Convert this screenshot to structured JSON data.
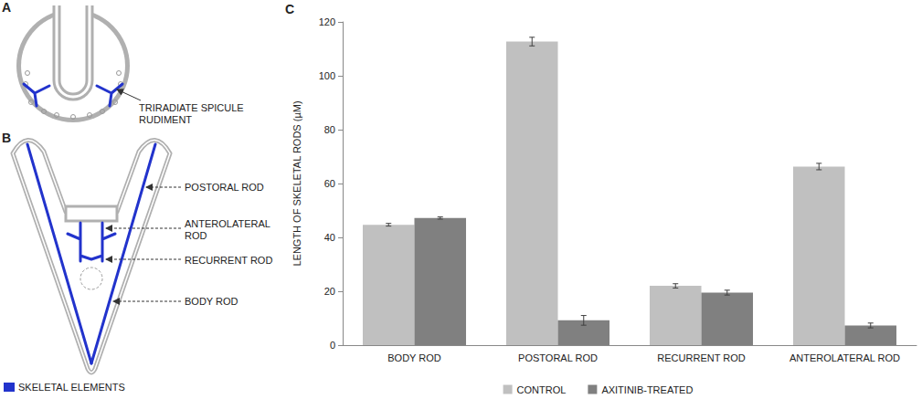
{
  "chart_data": {
    "type": "bar",
    "categories": [
      "BODY ROD",
      "POSTORAL ROD",
      "RECURRENT ROD",
      "ANTEROLATERAL ROD"
    ],
    "series": [
      {
        "name": "CONTROL",
        "color": "#c0c0c0",
        "values": [
          44.7,
          112.7,
          22.0,
          66.3
        ],
        "errors": [
          0.5,
          1.6,
          0.8,
          1.2
        ]
      },
      {
        "name": "AXITINIB-TREATED",
        "color": "#808080",
        "values": [
          47.2,
          9.2,
          19.5,
          7.3
        ],
        "errors": [
          0.4,
          1.8,
          0.9,
          0.9
        ]
      }
    ],
    "ylabel": "LENGTH OF SKELETAL RODS (µM)",
    "ylim": [
      0,
      120
    ],
    "yticks": [
      0,
      20,
      40,
      60,
      80,
      100,
      120
    ],
    "grid": false,
    "legend": "bottom"
  },
  "diagram": {
    "panel_letters": [
      "A",
      "B",
      "C"
    ],
    "panel_a": {
      "labels": [
        "TRIRADIATE SPICULE RUDIMENT"
      ]
    },
    "panel_b": {
      "labels": [
        "POSTORAL ROD",
        "ANTEROLATERAL ROD",
        "RECURRENT ROD",
        "BODY ROD"
      ]
    },
    "key": {
      "label": "SKELETAL ELEMENTS",
      "color": "#2233cc"
    }
  }
}
